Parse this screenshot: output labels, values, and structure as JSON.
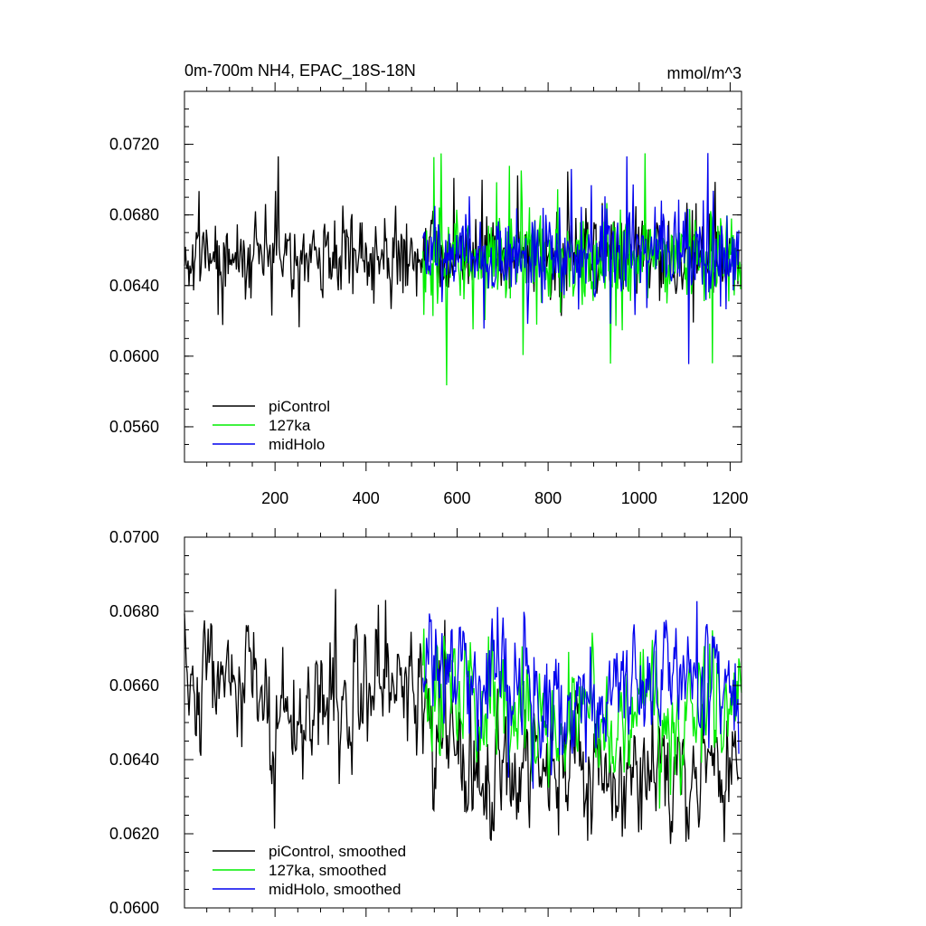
{
  "colors": {
    "piControl": "#000000",
    "127ka": "#00ee00",
    "midHolo": "#0000ee"
  },
  "chart_data": [
    {
      "type": "line",
      "title": "0m-700m NH4, EPAC_18S-18N",
      "units": "mmol/m^3",
      "xlim": [
        1,
        1225
      ],
      "ylim": [
        0.054,
        0.075
      ],
      "xticks": [
        200,
        400,
        600,
        800,
        1000,
        1200
      ],
      "xtick_labels": [
        "200",
        "400",
        "600",
        "800",
        "1000",
        "1200"
      ],
      "yticks": [
        0.056,
        0.06,
        0.064,
        0.068,
        0.072
      ],
      "ytick_labels": [
        "0.0560",
        "0.0600",
        "0.0640",
        "0.0680",
        "0.0720"
      ],
      "legend_position": "bottom-left",
      "series": [
        {
          "name": "piControl",
          "color": "#000000",
          "x_range": [
            1,
            1220
          ],
          "mean": 0.0658,
          "amplitude": 0.0022,
          "noise": "high-frequency"
        },
        {
          "name": "127ka",
          "color": "#00ee00",
          "x_range": [
            525,
            1225
          ],
          "mean": 0.0655,
          "amplitude": 0.0025,
          "noise": "high-frequency"
        },
        {
          "name": "midHolo",
          "color": "#0000ee",
          "x_range": [
            525,
            1220
          ],
          "mean": 0.0658,
          "amplitude": 0.0025,
          "noise": "high-frequency"
        }
      ]
    },
    {
      "type": "line",
      "xlim": [
        1,
        1225
      ],
      "ylim": [
        0.06,
        0.07
      ],
      "xticks": [
        200,
        400,
        600,
        800,
        1000,
        1200
      ],
      "yticks": [
        0.06,
        0.062,
        0.064,
        0.066,
        0.068,
        0.07
      ],
      "ytick_labels": [
        "0.0600",
        "0.0620",
        "0.0640",
        "0.0660",
        "0.0680",
        "0.0700"
      ],
      "legend_position": "bottom-left",
      "series": [
        {
          "name": "piControl, smoothed",
          "color": "#000000",
          "x_range": [
            1,
            1220
          ],
          "trend": [
            [
              1,
              0.0666
            ],
            [
              50,
              0.0668
            ],
            [
              150,
              0.0662
            ],
            [
              200,
              0.0652
            ],
            [
              280,
              0.0653
            ],
            [
              350,
              0.0654
            ],
            [
              400,
              0.066
            ],
            [
              520,
              0.0656
            ],
            [
              600,
              0.064
            ],
            [
              800,
              0.0637
            ],
            [
              1000,
              0.0639
            ],
            [
              1220,
              0.0638
            ]
          ]
        },
        {
          "name": "127ka, smoothed",
          "color": "#00ee00",
          "x_range": [
            525,
            1225
          ],
          "trend": [
            [
              525,
              0.0655
            ],
            [
              600,
              0.0654
            ],
            [
              800,
              0.065
            ],
            [
              1000,
              0.0653
            ],
            [
              1225,
              0.0655
            ]
          ]
        },
        {
          "name": "midHolo, smoothed",
          "color": "#0000ee",
          "x_range": [
            525,
            1220
          ],
          "trend": [
            [
              525,
              0.0668
            ],
            [
              580,
              0.0668
            ],
            [
              700,
              0.066
            ],
            [
              800,
              0.0656
            ],
            [
              1000,
              0.0658
            ],
            [
              1100,
              0.0662
            ],
            [
              1220,
              0.0656
            ]
          ]
        }
      ]
    }
  ]
}
